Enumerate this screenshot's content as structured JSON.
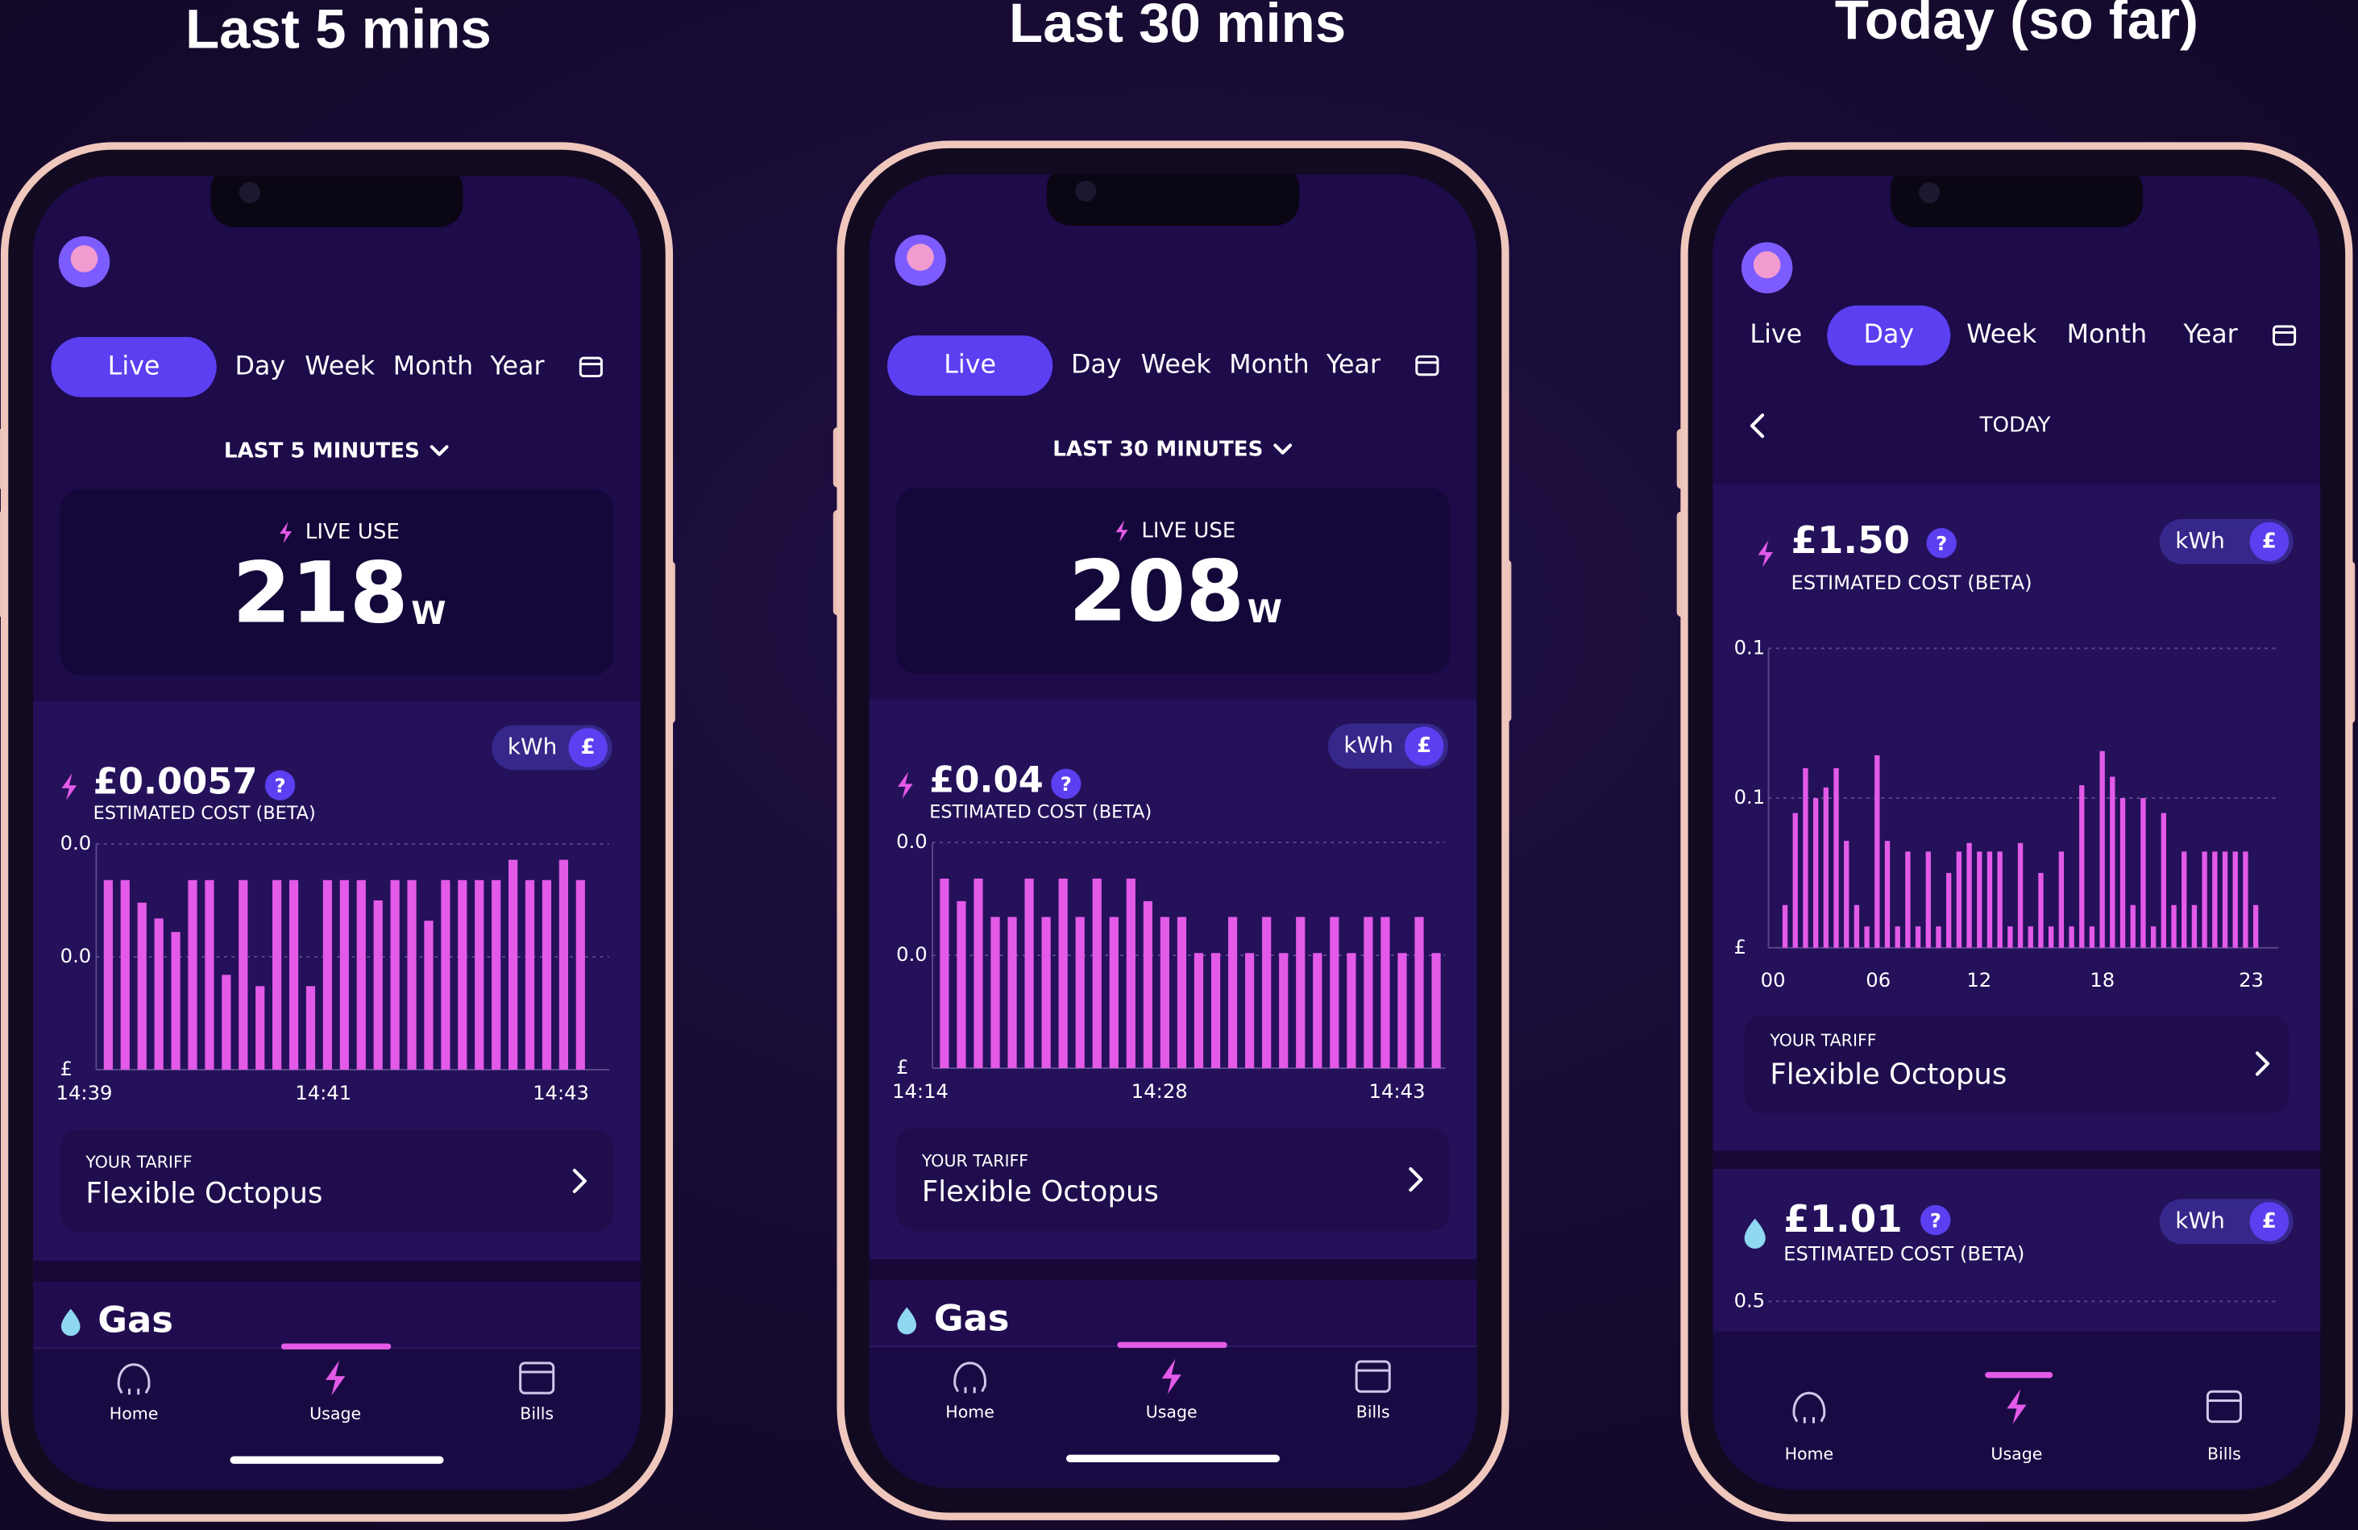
{
  "titles": [
    "Last 5 mins",
    "Last 30 mins",
    "Today (so far)"
  ],
  "phones": [
    {
      "tabs": [
        "Live",
        "Day",
        "Week",
        "Month",
        "Year"
      ],
      "active_tab": 0,
      "period": "LAST 5 MINUTES",
      "live_label": "LIVE USE",
      "live_value": "218",
      "live_unit": "W",
      "cost": "£0.0057",
      "help": "?",
      "cost_label": "ESTIMATED COST (BETA)",
      "toggle": [
        "kWh",
        "£"
      ],
      "chart": {
        "ylim": [
          0,
          0.001
        ],
        "yticks": [
          {
            "value": 0,
            "label": "£"
          },
          {
            "value": 0.0005,
            "label": "0.0"
          },
          {
            "value": 0.001,
            "label": "0.0"
          }
        ],
        "values": [
          0.00084,
          0.00084,
          0.00074,
          0.00067,
          0.00061,
          0.00084,
          0.00084,
          0.00042,
          0.00084,
          0.00037,
          0.00084,
          0.00084,
          0.00037,
          0.00084,
          0.00084,
          0.00084,
          0.00075,
          0.00084,
          0.00084,
          0.00066,
          0.00084,
          0.00084,
          0.00084,
          0.00084,
          0.00093,
          0.00084,
          0.00084,
          0.00093,
          0.00084
        ],
        "xlabels": [
          "14:39",
          "14:41",
          "14:43"
        ]
      },
      "tariff_label": "YOUR TARIFF",
      "tariff": "Flexible Octopus",
      "gas": "Gas",
      "nav": [
        "Home",
        "Usage",
        "Bills"
      ]
    },
    {
      "tabs": [
        "Live",
        "Day",
        "Week",
        "Month",
        "Year"
      ],
      "active_tab": 0,
      "period": "LAST 30 MINUTES",
      "live_label": "LIVE USE",
      "live_value": "208",
      "live_unit": "W",
      "cost": "£0.04",
      "help": "?",
      "cost_label": "ESTIMATED COST (BETA)",
      "toggle": [
        "kWh",
        "£"
      ],
      "chart": {
        "ylim": [
          0,
          0.001
        ],
        "yticks": [
          {
            "value": 0,
            "label": "£"
          },
          {
            "value": 0.0005,
            "label": "0.0"
          },
          {
            "value": 0.001,
            "label": "0.0"
          }
        ],
        "values": [
          0.00084,
          0.00074,
          0.00084,
          0.00067,
          0.00067,
          0.00084,
          0.00067,
          0.00084,
          0.00067,
          0.00084,
          0.00067,
          0.00084,
          0.00074,
          0.00067,
          0.00067,
          0.00051,
          0.00051,
          0.00067,
          0.00051,
          0.00067,
          0.00051,
          0.00067,
          0.00051,
          0.00067,
          0.00051,
          0.00067,
          0.00067,
          0.00051,
          0.00067,
          0.00051
        ],
        "xlabels": [
          "14:14",
          "14:28",
          "14:43"
        ]
      },
      "tariff_label": "YOUR TARIFF",
      "tariff": "Flexible Octopus",
      "gas": "Gas",
      "nav": [
        "Home",
        "Usage",
        "Bills"
      ]
    },
    {
      "tabs": [
        "Live",
        "Day",
        "Week",
        "Month",
        "Year"
      ],
      "active_tab": 1,
      "period": "TODAY",
      "cost": "£1.50",
      "help": "?",
      "cost_label": "ESTIMATED COST (BETA)",
      "toggle": [
        "kWh",
        "£"
      ],
      "chart": {
        "ylim": [
          0,
          0.14
        ],
        "yticks": [
          {
            "value": 0,
            "label": "£"
          },
          {
            "value": 0.07,
            "label": "0.1"
          },
          {
            "value": 0.14,
            "label": "0.1"
          }
        ],
        "values": [
          0.02,
          0.063,
          0.084,
          0.07,
          0.075,
          0.084,
          0.05,
          0.02,
          0.01,
          0.09,
          0.05,
          0.01,
          0.045,
          0.01,
          0.045,
          0.01,
          0.035,
          0.045,
          0.049,
          0.045,
          0.045,
          0.045,
          0.01,
          0.049,
          0.01,
          0.035,
          0.01,
          0.045,
          0.01,
          0.076,
          0.01,
          0.092,
          0.08,
          0.07,
          0.02,
          0.07,
          0.01,
          0.063,
          0.02,
          0.045,
          0.02,
          0.045,
          0.045,
          0.045,
          0.045,
          0.045,
          0.02
        ],
        "xlabels": [
          "00",
          "06",
          "12",
          "18",
          "23"
        ]
      },
      "tariff_label": "YOUR TARIFF",
      "tariff": "Flexible Octopus",
      "gas_cost": "£1.01",
      "gas_cost_label": "ESTIMATED COST (BETA)",
      "gas_toggle": [
        "kWh",
        "£"
      ],
      "gas_tick": "0.5",
      "nav": [
        "Home",
        "Usage",
        "Bills"
      ]
    }
  ]
}
